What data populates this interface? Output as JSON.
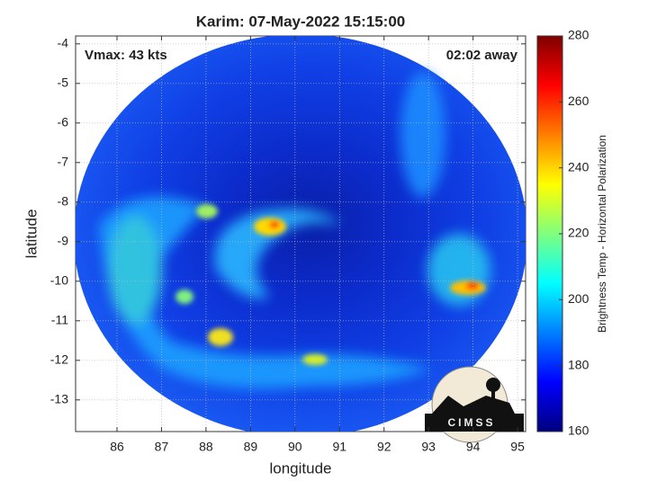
{
  "chart_data": {
    "type": "image",
    "title": "Karim: 07-May-2022 15:15:00",
    "xlabel": "longitude",
    "ylabel": "latitude",
    "xlim": [
      85.07,
      95.18
    ],
    "ylim": [
      -13.8,
      -3.8
    ],
    "xticks": [
      86,
      87,
      88,
      89,
      90,
      91,
      92,
      93,
      94,
      95
    ],
    "yticks": [
      -4,
      -5,
      -6,
      -7,
      -8,
      -9,
      -10,
      -11,
      -12,
      -13
    ],
    "grid": true,
    "annotations": [
      "Vmax: 43 kts",
      "02:02 away"
    ],
    "colorbar": {
      "label": "Brightness Temp - Horizontal Polarization",
      "lim": [
        160,
        280
      ],
      "ticks": [
        160,
        180,
        200,
        220,
        240,
        260,
        280
      ],
      "colormap": "jet"
    },
    "logo": "CIMSS"
  }
}
